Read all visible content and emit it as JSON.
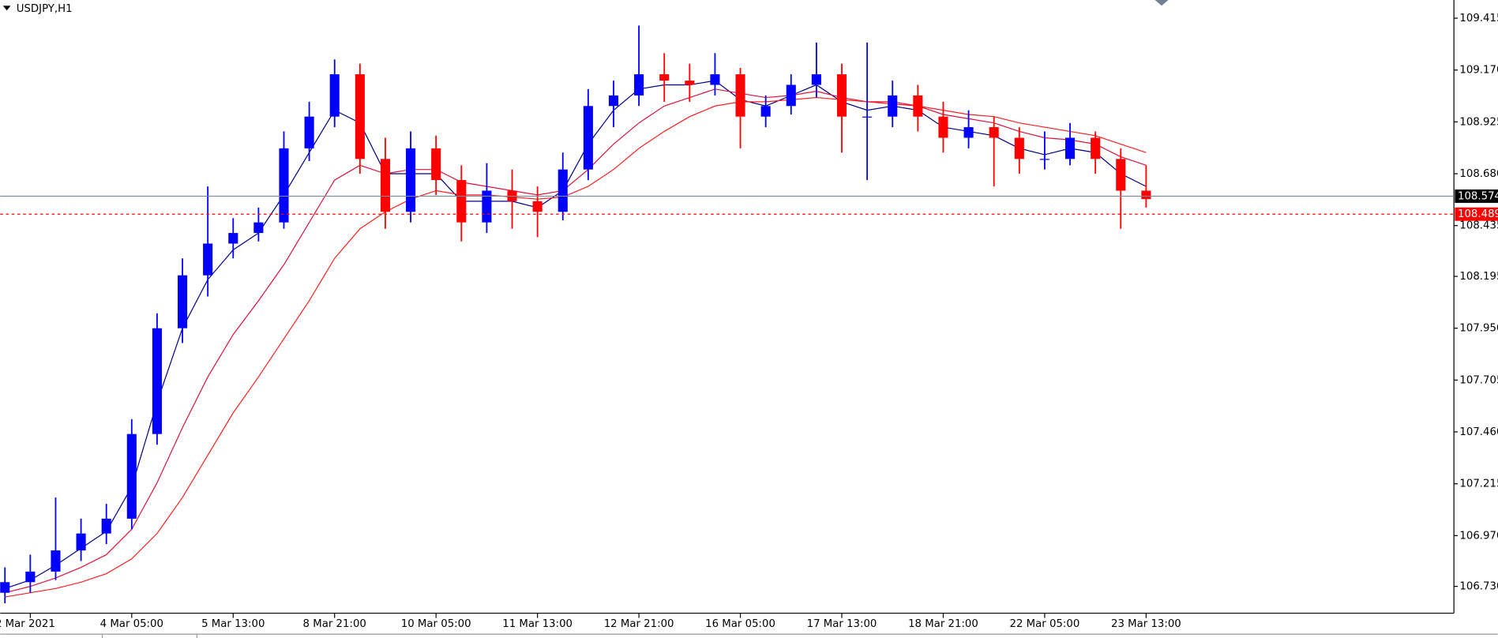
{
  "chart_data": {
    "type": "candlestick",
    "title": "USDJPY,H1",
    "up_color": "#0000ff",
    "down_color": "#ff0000",
    "open": [
      106.7,
      106.75,
      106.8,
      106.9,
      106.98,
      107.05,
      107.45,
      107.95,
      108.2,
      108.35,
      108.4,
      108.45,
      108.8,
      108.95,
      109.15,
      108.75,
      108.5,
      108.8,
      108.65,
      108.45,
      108.6,
      108.55,
      108.5,
      108.7,
      109.0,
      109.05,
      109.15,
      109.12,
      109.1,
      109.15,
      108.95,
      109.0,
      109.1,
      109.15,
      108.95,
      108.95,
      109.05,
      108.95,
      108.85,
      108.9,
      108.85,
      108.75,
      108.75,
      108.85,
      108.75,
      108.6
    ],
    "high": [
      106.82,
      106.88,
      107.15,
      107.05,
      107.12,
      107.52,
      108.02,
      108.28,
      108.62,
      108.47,
      108.52,
      108.88,
      109.02,
      109.22,
      109.2,
      108.85,
      108.88,
      108.86,
      108.72,
      108.73,
      108.7,
      108.62,
      108.78,
      109.08,
      109.12,
      109.38,
      109.25,
      109.2,
      109.25,
      109.18,
      109.05,
      109.15,
      109.3,
      109.2,
      109.3,
      109.12,
      109.1,
      109.02,
      108.98,
      108.95,
      108.9,
      108.88,
      108.92,
      108.88,
      108.8,
      108.72
    ],
    "low": [
      106.65,
      106.7,
      106.76,
      106.85,
      106.93,
      107.0,
      107.4,
      107.88,
      108.1,
      108.28,
      108.36,
      108.42,
      108.74,
      108.9,
      108.68,
      108.42,
      108.45,
      108.58,
      108.36,
      108.4,
      108.42,
      108.38,
      108.46,
      108.65,
      108.9,
      109.0,
      109.02,
      109.02,
      109.05,
      108.8,
      108.9,
      108.96,
      109.04,
      108.78,
      108.65,
      108.9,
      108.88,
      108.78,
      108.8,
      108.62,
      108.68,
      108.7,
      108.72,
      108.68,
      108.42,
      108.52
    ],
    "close": [
      106.75,
      106.8,
      106.9,
      106.98,
      107.05,
      107.45,
      107.95,
      108.2,
      108.35,
      108.4,
      108.45,
      108.8,
      108.95,
      109.15,
      108.75,
      108.5,
      108.8,
      108.65,
      108.45,
      108.6,
      108.55,
      108.5,
      108.7,
      109.0,
      109.05,
      109.15,
      109.12,
      109.1,
      109.15,
      108.95,
      109.0,
      109.1,
      109.15,
      108.95,
      108.95,
      109.05,
      108.95,
      108.85,
      108.9,
      108.85,
      108.75,
      108.75,
      108.85,
      108.75,
      108.6,
      108.56
    ],
    "ma": [
      {
        "color": "#00008b",
        "values": [
          106.72,
          106.76,
          106.83,
          106.91,
          106.99,
          107.2,
          107.6,
          107.95,
          108.18,
          108.32,
          108.4,
          108.58,
          108.78,
          108.98,
          108.92,
          108.68,
          108.68,
          108.68,
          108.55,
          108.55,
          108.55,
          108.52,
          108.6,
          108.82,
          108.98,
          109.08,
          109.1,
          109.1,
          109.12,
          109.03,
          109.0,
          109.05,
          109.1,
          109.02,
          108.98,
          109.0,
          108.98,
          108.9,
          108.88,
          108.86,
          108.8,
          108.77,
          108.8,
          108.78,
          108.68,
          108.62
        ]
      },
      {
        "color": "#dc143c",
        "values": [
          106.7,
          106.73,
          106.77,
          106.82,
          106.88,
          107.0,
          107.22,
          107.48,
          107.72,
          107.92,
          108.08,
          108.25,
          108.45,
          108.65,
          108.72,
          108.68,
          108.7,
          108.7,
          108.64,
          108.62,
          108.6,
          108.58,
          108.6,
          108.7,
          108.82,
          108.92,
          109.0,
          109.04,
          109.08,
          109.06,
          109.04,
          109.05,
          109.07,
          109.04,
          109.02,
          109.02,
          109.0,
          108.96,
          108.94,
          108.92,
          108.88,
          108.85,
          108.84,
          108.82,
          108.76,
          108.72
        ]
      },
      {
        "color": "#ff2020",
        "values": [
          106.68,
          106.7,
          106.72,
          106.75,
          106.79,
          106.86,
          106.98,
          107.15,
          107.35,
          107.55,
          107.72,
          107.9,
          108.08,
          108.28,
          108.42,
          108.5,
          108.56,
          108.6,
          108.58,
          108.58,
          108.57,
          108.56,
          108.57,
          108.62,
          108.7,
          108.8,
          108.88,
          108.95,
          109.0,
          109.02,
          109.02,
          109.03,
          109.04,
          109.03,
          109.02,
          109.01,
          109.0,
          108.98,
          108.96,
          108.95,
          108.92,
          108.9,
          108.88,
          108.86,
          108.82,
          108.78
        ]
      }
    ],
    "price_lines": [
      {
        "value": 108.574,
        "color": "#7a8a9a",
        "label_bg": "#000000",
        "dashed": false
      },
      {
        "value": 108.489,
        "color": "#ff0000",
        "label_bg": "#ff0000",
        "dashed": true
      }
    ],
    "ylim": [
      106.608,
      109.501
    ],
    "yticks": [
      109.415,
      {
        "value": 109.17,
        "label": "109.170"
      },
      108.925,
      {
        "value": 108.68,
        "label": "108.680"
      },
      108.435,
      108.195,
      {
        "value": 107.95,
        "label": "107.950"
      },
      107.705,
      {
        "value": 107.46,
        "label": "107.460"
      },
      107.215,
      {
        "value": 106.97,
        "label": "106.970"
      },
      {
        "value": 106.73,
        "label": "106.730"
      }
    ],
    "xticks": [
      {
        "value": 1,
        "label": "2 Mar 2021"
      },
      {
        "value": 5,
        "label": "4 Mar 05:00"
      },
      {
        "value": 9,
        "label": "5 Mar 13:00"
      },
      {
        "value": 13,
        "label": "8 Mar 21:00"
      },
      {
        "value": 17,
        "label": "10 Mar 05:00"
      },
      {
        "value": 21,
        "label": "11 Mar 13:00"
      },
      {
        "value": 25,
        "label": "12 Mar 21:00"
      },
      {
        "value": 29,
        "label": "16 Mar 05:00"
      },
      {
        "value": 33,
        "label": "17 Mar 13:00"
      },
      {
        "value": 37,
        "label": "18 Mar 21:00"
      },
      {
        "value": 41,
        "label": "22 Mar 05:00"
      },
      {
        "value": 45,
        "label": "23 Mar 13:00"
      }
    ]
  }
}
